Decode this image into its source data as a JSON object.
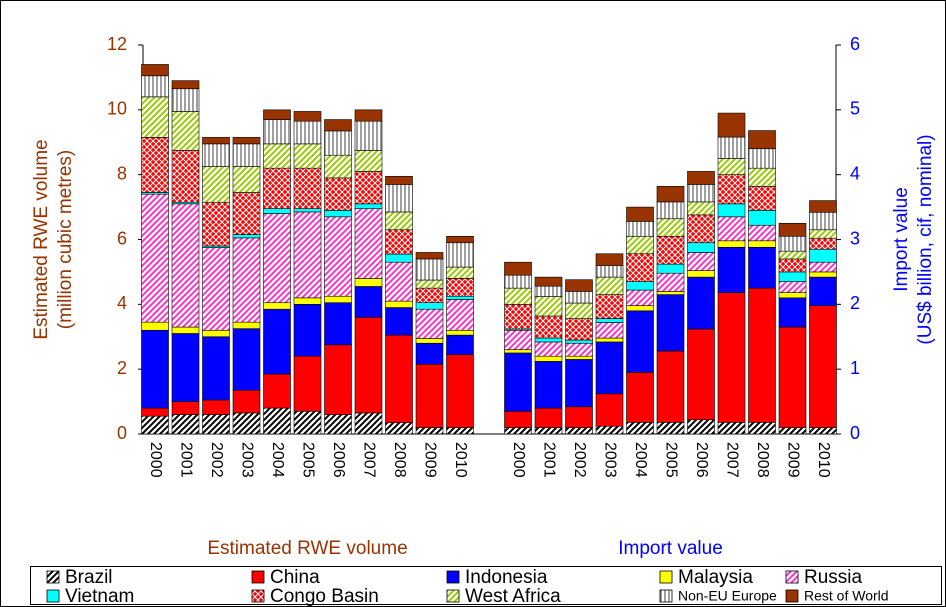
{
  "chart_data": {
    "type": "bar",
    "stacked": true,
    "ylabel": [
      "Estimated RWE volume",
      "(million cubic metres)"
    ],
    "y2label": [
      "Import value",
      "(US$ billion, cif, nominal)"
    ],
    "ycolor": "#993300",
    "y2color": "#0000ff",
    "ylim": [
      0,
      12
    ],
    "yticks": [
      0,
      2,
      4,
      6,
      8,
      10,
      12
    ],
    "y2lim": [
      0,
      6
    ],
    "y2ticks": [
      0,
      1,
      2,
      3,
      4,
      5,
      6
    ],
    "legend": "bottom",
    "series": [
      {
        "name": "Brazil",
        "color": "#000000",
        "pattern": "diagonal"
      },
      {
        "name": "China",
        "color": "#ff0000"
      },
      {
        "name": "Indonesia",
        "color": "#0000ff"
      },
      {
        "name": "Malaysia",
        "color": "#ffff00"
      },
      {
        "name": "Russia",
        "color": "#ff33cc",
        "pattern": "diagonal"
      },
      {
        "name": "Vietnam",
        "color": "#00ffff"
      },
      {
        "name": "Congo Basin",
        "color": "#ff0000",
        "pattern": "crosshatch"
      },
      {
        "name": "West Africa",
        "color": "#99cc00",
        "pattern": "diagonal"
      },
      {
        "name": "Non-EU Europe",
        "color": "#808080",
        "pattern": "vertical"
      },
      {
        "name": "Rest of World",
        "color": "#993300"
      }
    ],
    "groups": [
      {
        "label": "Estimated RWE volume",
        "axis": "y",
        "categories": [
          "2000",
          "2001",
          "2002",
          "2003",
          "2004",
          "2005",
          "2006",
          "2007",
          "2008",
          "2009",
          "2010"
        ],
        "values": [
          [
            0.55,
            0.6,
            0.6,
            0.65,
            0.8,
            0.7,
            0.6,
            0.65,
            0.35,
            0.2,
            0.2
          ],
          [
            0.25,
            0.4,
            0.45,
            0.7,
            1.05,
            1.7,
            2.15,
            2.95,
            2.7,
            1.95,
            2.25
          ],
          [
            2.4,
            2.1,
            1.95,
            1.9,
            2.0,
            1.6,
            1.3,
            0.95,
            0.85,
            0.65,
            0.6
          ],
          [
            0.25,
            0.2,
            0.2,
            0.2,
            0.2,
            0.2,
            0.2,
            0.25,
            0.2,
            0.15,
            0.15
          ],
          [
            3.95,
            3.8,
            2.55,
            2.6,
            2.75,
            2.65,
            2.45,
            2.15,
            1.2,
            0.9,
            0.95
          ],
          [
            0.05,
            0.05,
            0.05,
            0.1,
            0.15,
            0.1,
            0.2,
            0.15,
            0.25,
            0.2,
            0.1
          ],
          [
            1.7,
            1.6,
            1.35,
            1.3,
            1.25,
            1.25,
            1.0,
            1.0,
            0.75,
            0.45,
            0.55
          ],
          [
            1.25,
            1.2,
            1.1,
            0.8,
            0.75,
            0.75,
            0.7,
            0.65,
            0.55,
            0.25,
            0.35
          ],
          [
            0.65,
            0.7,
            0.7,
            0.7,
            0.75,
            0.7,
            0.75,
            0.9,
            0.85,
            0.65,
            0.75
          ],
          [
            0.35,
            0.25,
            0.2,
            0.2,
            0.3,
            0.3,
            0.35,
            0.35,
            0.25,
            0.2,
            0.2
          ]
        ]
      },
      {
        "label": "Import value",
        "axis": "y2",
        "categories": [
          "2000",
          "2001",
          "2002",
          "2003",
          "2004",
          "2005",
          "2006",
          "2007",
          "2008",
          "2009",
          "2010"
        ],
        "values": [
          [
            0.1,
            0.1,
            0.1,
            0.12,
            0.18,
            0.18,
            0.22,
            0.18,
            0.18,
            0.1,
            0.1
          ],
          [
            0.25,
            0.3,
            0.32,
            0.5,
            0.77,
            1.1,
            1.4,
            2.0,
            2.07,
            1.55,
            1.88
          ],
          [
            0.9,
            0.72,
            0.73,
            0.8,
            0.95,
            0.87,
            0.8,
            0.7,
            0.63,
            0.45,
            0.44
          ],
          [
            0.05,
            0.08,
            0.05,
            0.06,
            0.08,
            0.05,
            0.1,
            0.1,
            0.1,
            0.08,
            0.08
          ],
          [
            0.3,
            0.22,
            0.2,
            0.24,
            0.24,
            0.28,
            0.28,
            0.37,
            0.24,
            0.17,
            0.15
          ],
          [
            0.02,
            0.06,
            0.05,
            0.06,
            0.13,
            0.14,
            0.15,
            0.2,
            0.23,
            0.15,
            0.2
          ],
          [
            0.38,
            0.34,
            0.33,
            0.37,
            0.43,
            0.43,
            0.43,
            0.45,
            0.37,
            0.2,
            0.17
          ],
          [
            0.25,
            0.3,
            0.24,
            0.27,
            0.27,
            0.27,
            0.2,
            0.25,
            0.28,
            0.12,
            0.13
          ],
          [
            0.2,
            0.16,
            0.18,
            0.18,
            0.23,
            0.26,
            0.27,
            0.33,
            0.3,
            0.23,
            0.27
          ],
          [
            0.2,
            0.14,
            0.18,
            0.18,
            0.22,
            0.24,
            0.2,
            0.37,
            0.28,
            0.2,
            0.18
          ]
        ]
      }
    ]
  }
}
